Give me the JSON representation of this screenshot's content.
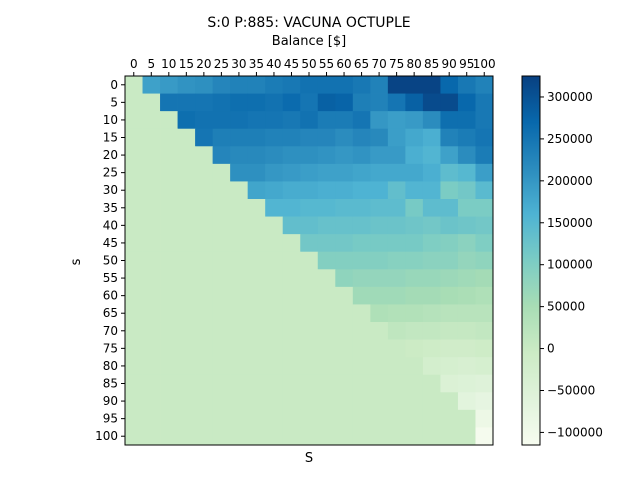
{
  "chart_data": {
    "type": "heatmap",
    "title": "S:0 P:885: VACUNA OCTUPLE",
    "xlabel_top": "Balance [$]",
    "xlabel": "S",
    "ylabel": "s",
    "x_ticks": [
      0,
      5,
      10,
      15,
      20,
      25,
      30,
      35,
      40,
      45,
      50,
      55,
      60,
      65,
      70,
      75,
      80,
      85,
      90,
      95,
      100
    ],
    "y_ticks": [
      0,
      5,
      10,
      15,
      20,
      25,
      30,
      35,
      40,
      45,
      50,
      55,
      60,
      65,
      70,
      75,
      80,
      85,
      90,
      95,
      100
    ],
    "colorbar": {
      "cmap": "GnBu",
      "min": -115000,
      "max": 325000,
      "ticks": [
        -100000,
        -50000,
        0,
        50000,
        100000,
        150000,
        200000,
        250000,
        300000
      ],
      "tick_labels": [
        "−100000",
        "−50000",
        "0",
        "50000",
        "100000",
        "150000",
        "200000",
        "250000",
        "300000"
      ]
    },
    "rows": [
      [
        0,
        185000,
        195000,
        205000,
        210000,
        225000,
        230000,
        230000,
        240000,
        245000,
        255000,
        255000,
        255000,
        245000,
        230000,
        320000,
        320000,
        320000,
        270000,
        245000,
        230000
      ],
      [
        0,
        0,
        250000,
        250000,
        250000,
        255000,
        260000,
        260000,
        255000,
        265000,
        250000,
        280000,
        275000,
        235000,
        230000,
        250000,
        280000,
        310000,
        310000,
        270000,
        245000
      ],
      [
        0,
        0,
        0,
        260000,
        255000,
        255000,
        255000,
        250000,
        250000,
        245000,
        255000,
        240000,
        240000,
        250000,
        200000,
        190000,
        195000,
        215000,
        260000,
        260000,
        245000
      ],
      [
        0,
        0,
        0,
        0,
        250000,
        235000,
        235000,
        235000,
        230000,
        230000,
        225000,
        225000,
        215000,
        225000,
        220000,
        190000,
        175000,
        165000,
        230000,
        240000,
        250000
      ],
      [
        0,
        0,
        0,
        0,
        0,
        225000,
        220000,
        220000,
        215000,
        210000,
        210000,
        205000,
        200000,
        205000,
        195000,
        195000,
        165000,
        155000,
        185000,
        215000,
        240000
      ],
      [
        0,
        0,
        0,
        0,
        0,
        0,
        210000,
        210000,
        200000,
        195000,
        190000,
        185000,
        185000,
        180000,
        175000,
        175000,
        175000,
        165000,
        140000,
        150000,
        190000
      ],
      [
        0,
        0,
        0,
        0,
        0,
        0,
        0,
        180000,
        175000,
        170000,
        170000,
        165000,
        165000,
        160000,
        160000,
        135000,
        155000,
        155000,
        105000,
        115000,
        145000
      ],
      [
        0,
        0,
        0,
        0,
        0,
        0,
        0,
        0,
        155000,
        155000,
        150000,
        150000,
        145000,
        145000,
        140000,
        140000,
        110000,
        140000,
        140000,
        105000,
        105000
      ],
      [
        0,
        0,
        0,
        0,
        0,
        0,
        0,
        0,
        0,
        135000,
        135000,
        130000,
        130000,
        130000,
        125000,
        125000,
        120000,
        115000,
        125000,
        120000,
        115000
      ],
      [
        0,
        0,
        0,
        0,
        0,
        0,
        0,
        0,
        0,
        0,
        115000,
        115000,
        115000,
        110000,
        110000,
        110000,
        110000,
        100000,
        95000,
        85000,
        100000
      ],
      [
        0,
        0,
        0,
        0,
        0,
        0,
        0,
        0,
        0,
        0,
        0,
        95000,
        95000,
        95000,
        95000,
        90000,
        90000,
        85000,
        85000,
        75000,
        80000
      ],
      [
        0,
        0,
        0,
        0,
        0,
        0,
        0,
        0,
        0,
        0,
        0,
        0,
        80000,
        75000,
        75000,
        75000,
        70000,
        70000,
        65000,
        60000,
        55000
      ],
      [
        0,
        0,
        0,
        0,
        0,
        0,
        0,
        0,
        0,
        0,
        0,
        0,
        0,
        60000,
        60000,
        60000,
        55000,
        55000,
        50000,
        45000,
        40000
      ],
      [
        0,
        0,
        0,
        0,
        0,
        0,
        0,
        0,
        0,
        0,
        0,
        0,
        0,
        0,
        40000,
        35000,
        35000,
        30000,
        25000,
        25000,
        25000
      ],
      [
        0,
        0,
        0,
        0,
        0,
        0,
        0,
        0,
        0,
        0,
        0,
        0,
        0,
        0,
        0,
        15000,
        10000,
        10000,
        5000,
        5000,
        10000
      ],
      [
        0,
        0,
        0,
        0,
        0,
        0,
        0,
        0,
        0,
        0,
        0,
        0,
        0,
        0,
        0,
        0,
        -5000,
        -10000,
        -15000,
        -15000,
        -10000
      ],
      [
        0,
        0,
        0,
        0,
        0,
        0,
        0,
        0,
        0,
        0,
        0,
        0,
        0,
        0,
        0,
        0,
        0,
        -25000,
        -30000,
        -35000,
        -30000
      ],
      [
        0,
        0,
        0,
        0,
        0,
        0,
        0,
        0,
        0,
        0,
        0,
        0,
        0,
        0,
        0,
        0,
        0,
        0,
        -45000,
        -50000,
        -55000
      ],
      [
        0,
        0,
        0,
        0,
        0,
        0,
        0,
        0,
        0,
        0,
        0,
        0,
        0,
        0,
        0,
        0,
        0,
        0,
        0,
        -65000,
        -75000
      ],
      [
        0,
        0,
        0,
        0,
        0,
        0,
        0,
        0,
        0,
        0,
        0,
        0,
        0,
        0,
        0,
        0,
        0,
        0,
        0,
        0,
        -90000
      ],
      [
        0,
        0,
        0,
        0,
        0,
        0,
        0,
        0,
        0,
        0,
        0,
        0,
        0,
        0,
        0,
        0,
        0,
        0,
        0,
        0,
        -110000
      ]
    ]
  }
}
